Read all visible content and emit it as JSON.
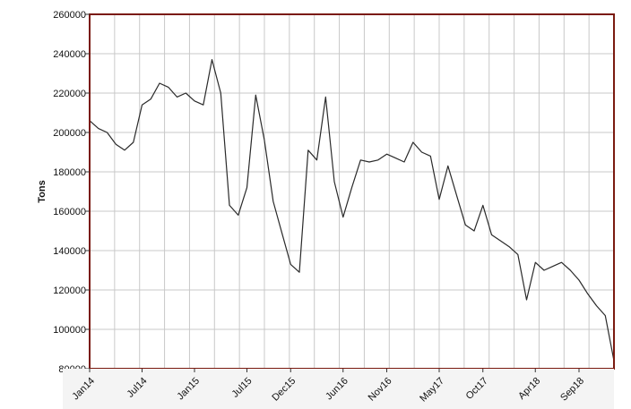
{
  "chart_data": {
    "type": "line",
    "title": "",
    "xlabel": "",
    "ylabel": "Tons",
    "ylim": [
      80000,
      260000
    ],
    "yticks": [
      80000,
      100000,
      120000,
      140000,
      160000,
      180000,
      200000,
      220000,
      240000,
      260000
    ],
    "ytick_labels": [
      "80000",
      "100000",
      "120000",
      "140000",
      "160000",
      "180000",
      "200000",
      "220000",
      "240000",
      "260000"
    ],
    "xlim": [
      "2014-01",
      "2019-01"
    ],
    "x_tick_labels": [
      "Jan14",
      "Jul14",
      "Jan15",
      "Jul15",
      "Dec15",
      "Jun16",
      "Nov16",
      "May17",
      "Oct17",
      "Apr18",
      "Sep18"
    ],
    "x_tick_dates": [
      "2014-01",
      "2014-07",
      "2015-01",
      "2015-07",
      "2015-12",
      "2016-06",
      "2016-11",
      "2017-05",
      "2017-10",
      "2018-04",
      "2018-09"
    ],
    "grid": true,
    "colors": {
      "line": "#2a2a2a",
      "frame": "#7a1a10",
      "grid": "#c8c8c8",
      "background": "#ffffff"
    },
    "series": [
      {
        "x": [
          "2014-01",
          "2014-02",
          "2014-03",
          "2014-04",
          "2014-05",
          "2014-06",
          "2014-07",
          "2014-08",
          "2014-09",
          "2014-10",
          "2014-11",
          "2014-12",
          "2015-01",
          "2015-02",
          "2015-03",
          "2015-04",
          "2015-05",
          "2015-06",
          "2015-07",
          "2015-08",
          "2015-09",
          "2015-10",
          "2015-11",
          "2015-12",
          "2016-01",
          "2016-02",
          "2016-03",
          "2016-04",
          "2016-05",
          "2016-06",
          "2016-07",
          "2016-08",
          "2016-09",
          "2016-10",
          "2016-11",
          "2016-12",
          "2017-01",
          "2017-02",
          "2017-03",
          "2017-04",
          "2017-05",
          "2017-06",
          "2017-07",
          "2017-08",
          "2017-09",
          "2017-10",
          "2017-11",
          "2017-12",
          "2018-01",
          "2018-02",
          "2018-03",
          "2018-04",
          "2018-05",
          "2018-06",
          "2018-07",
          "2018-08",
          "2018-09",
          "2018-10",
          "2018-11",
          "2018-12",
          "2019-01"
        ],
        "values": [
          206000,
          202000,
          200000,
          194000,
          191000,
          195000,
          214000,
          217000,
          225000,
          223000,
          218000,
          220000,
          216000,
          214000,
          237000,
          220000,
          163000,
          158000,
          172000,
          219000,
          196000,
          165000,
          149000,
          133000,
          129000,
          191000,
          186000,
          218000,
          175000,
          157000,
          172000,
          186000,
          185000,
          186000,
          189000,
          187000,
          185000,
          195000,
          190000,
          188000,
          166000,
          183000,
          168000,
          153000,
          150000,
          163000,
          148000,
          145000,
          142000,
          138000,
          115000,
          134000,
          130000,
          132000,
          134000,
          130000,
          125000,
          118000,
          112000,
          107000,
          84000
        ]
      }
    ]
  }
}
